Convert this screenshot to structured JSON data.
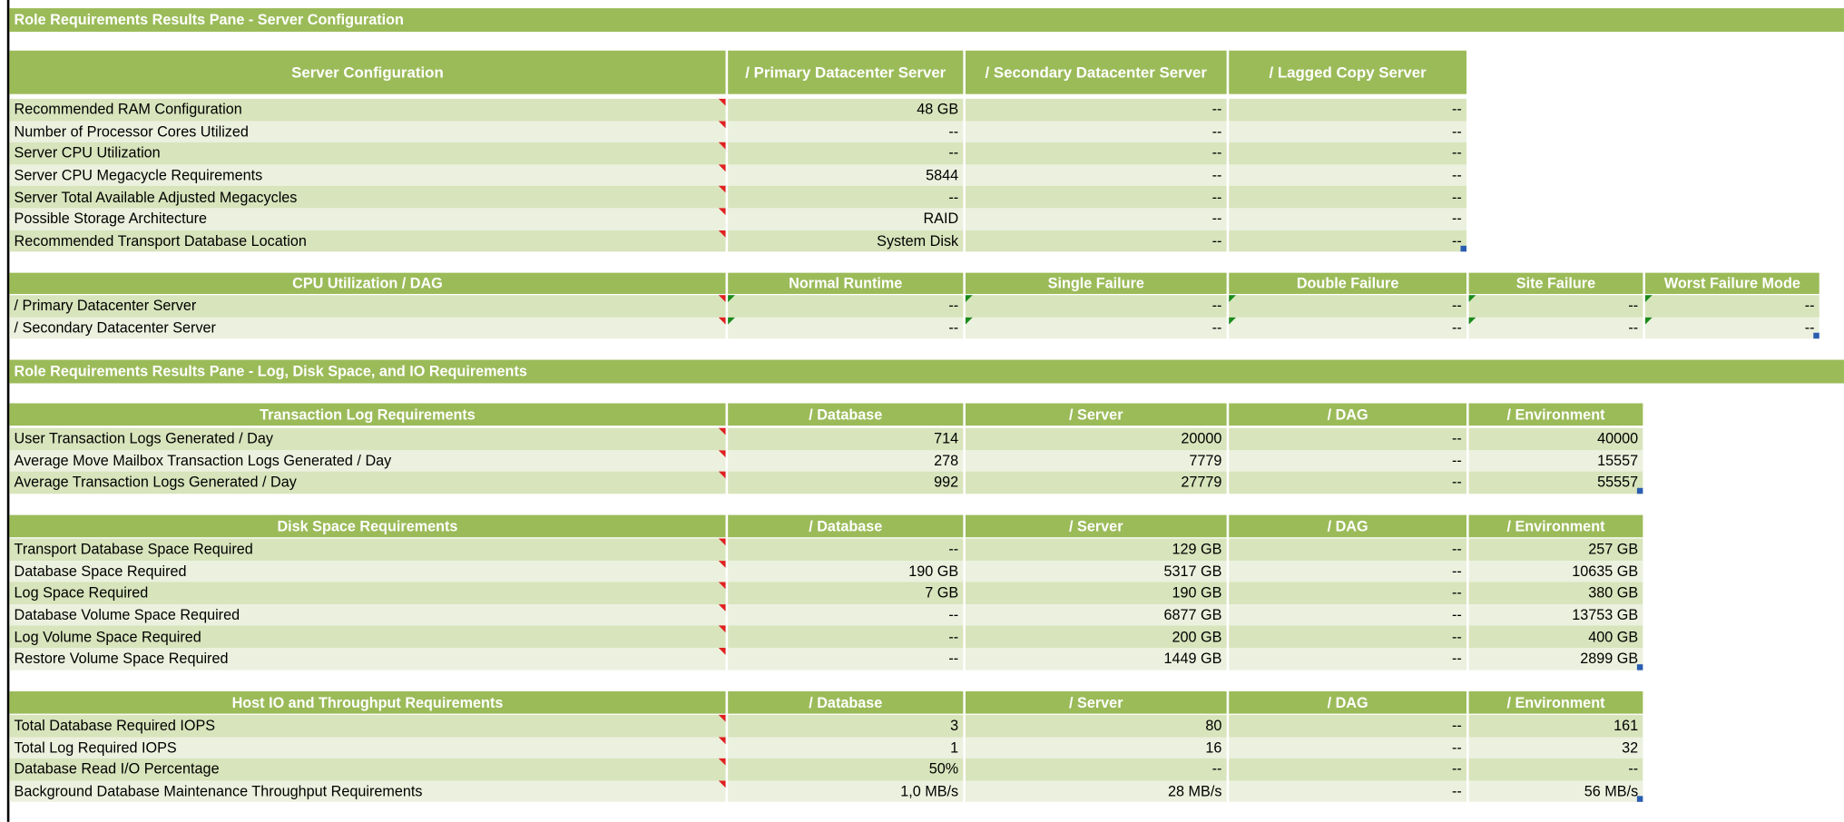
{
  "sections": [
    {
      "title": "Role Requirements Results Pane  - Server Configuration",
      "tables": [
        {
          "columns": [
            "Server Configuration",
            "/ Primary Datacenter Server",
            "/ Secondary Datacenter Server",
            "/ Lagged Copy Server"
          ],
          "rows": [
            [
              "Recommended RAM Configuration",
              "48 GB",
              "--",
              "--"
            ],
            [
              "Number of Processor Cores Utilized",
              "--",
              "--",
              "--"
            ],
            [
              "Server CPU Utilization",
              "--",
              "--",
              "--"
            ],
            [
              "Server CPU Megacycle Requirements",
              "5844",
              "--",
              "--"
            ],
            [
              "Server Total Available Adjusted Megacycles",
              "--",
              "--",
              "--"
            ],
            [
              "Possible Storage Architecture",
              "RAID",
              "--",
              "--"
            ],
            [
              "Recommended Transport Database Location",
              "System Disk",
              "--",
              "--"
            ]
          ]
        },
        {
          "columns": [
            "CPU Utilization / DAG",
            "Normal Runtime",
            "Single Failure",
            "Double Failure",
            "Site Failure",
            "Worst Failure Mode"
          ],
          "rows": [
            [
              "/ Primary Datacenter Server",
              "--",
              "--",
              "--",
              "--",
              "--"
            ],
            [
              "/ Secondary Datacenter Server",
              "--",
              "--",
              "--",
              "--",
              "--"
            ]
          ]
        }
      ]
    },
    {
      "title": "Role Requirements Results Pane  - Log, Disk Space, and IO Requirements",
      "tables": [
        {
          "columns": [
            "Transaction Log Requirements",
            "/ Database",
            "/ Server",
            "/ DAG",
            "/ Environment"
          ],
          "rows": [
            [
              "User Transaction Logs Generated / Day",
              "714",
              "20000",
              "--",
              "40000"
            ],
            [
              "Average Move Mailbox Transaction Logs Generated / Day",
              "278",
              "7779",
              "--",
              "15557"
            ],
            [
              "Average Transaction Logs Generated / Day",
              "992",
              "27779",
              "--",
              "55557"
            ]
          ]
        },
        {
          "columns": [
            "Disk Space Requirements",
            "/ Database",
            "/ Server",
            "/ DAG",
            "/ Environment"
          ],
          "rows": [
            [
              "Transport Database Space Required",
              "--",
              "129 GB",
              "--",
              "257 GB"
            ],
            [
              "Database Space Required",
              "190 GB",
              "5317 GB",
              "--",
              "10635 GB"
            ],
            [
              "Log Space Required",
              "7 GB",
              "190 GB",
              "--",
              "380 GB"
            ],
            [
              "Database Volume Space Required",
              "--",
              "6877 GB",
              "--",
              "13753 GB"
            ],
            [
              "Log Volume Space Required",
              "--",
              "200 GB",
              "--",
              "400 GB"
            ],
            [
              "Restore Volume Space Required",
              "--",
              "1449 GB",
              "--",
              "2899 GB"
            ]
          ]
        },
        {
          "columns": [
            "Host IO and Throughput Requirements",
            "/ Database",
            "/ Server",
            "/ DAG",
            "/ Environment"
          ],
          "rows": [
            [
              "Total Database Required IOPS",
              "3",
              "80",
              "--",
              "161"
            ],
            [
              "Total Log Required IOPS",
              "1",
              "16",
              "--",
              "32"
            ],
            [
              "Database Read I/O Percentage",
              "50%",
              "--",
              "--",
              "--"
            ],
            [
              "Background Database Maintenance Throughput Requirements",
              "1,0 MB/s",
              "28 MB/s",
              "--",
              "56 MB/s"
            ]
          ]
        }
      ]
    }
  ]
}
